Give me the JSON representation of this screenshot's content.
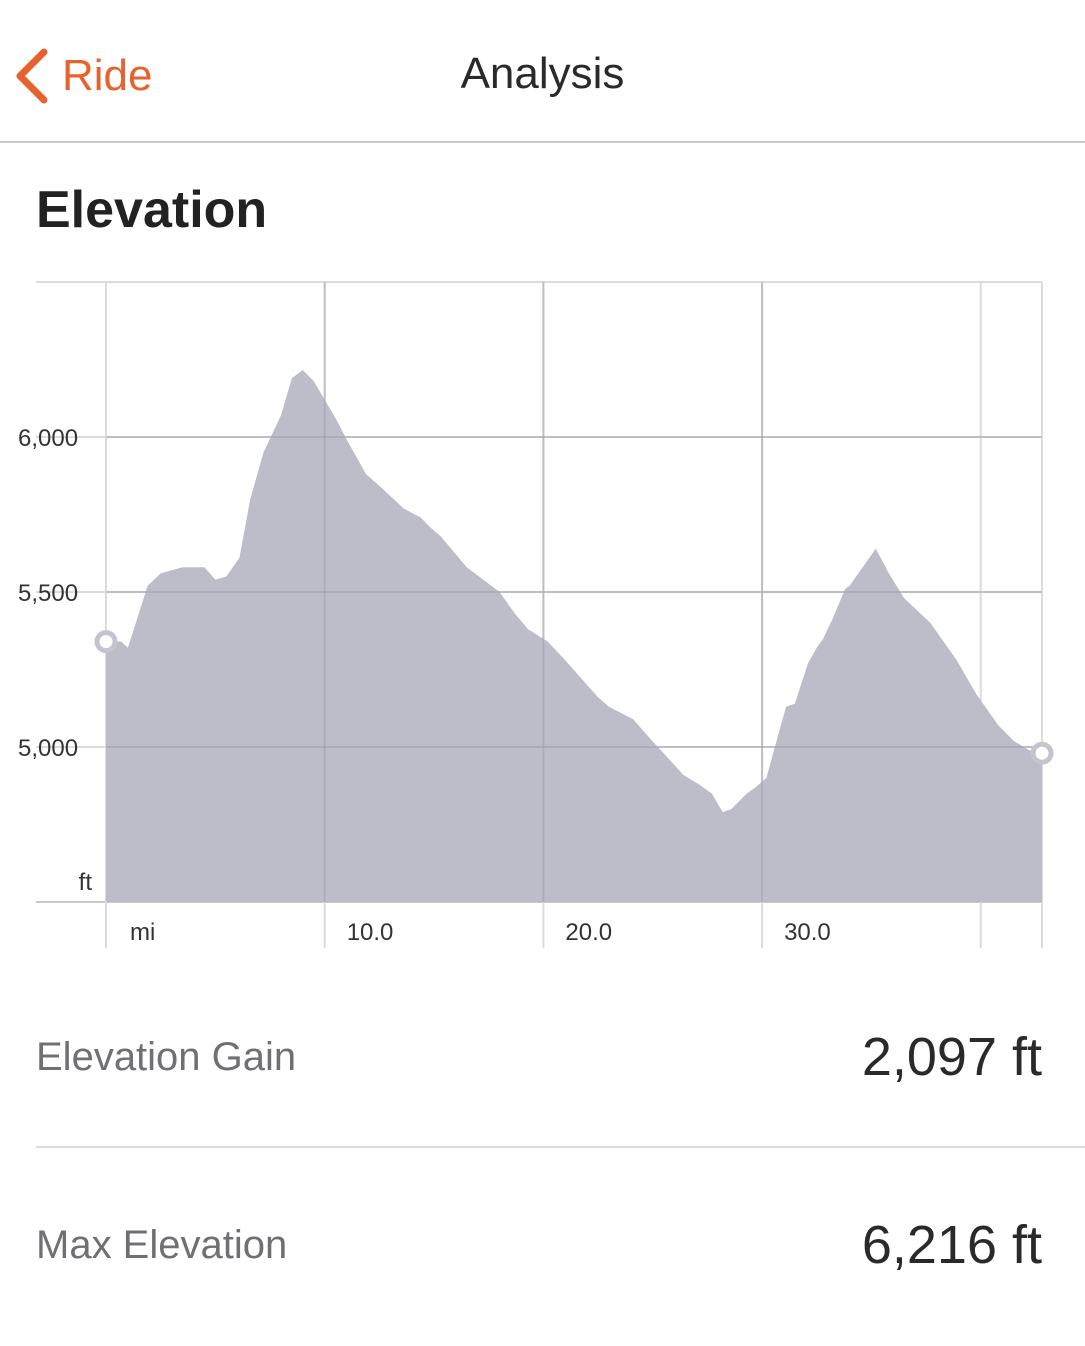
{
  "navbar": {
    "back_label": "Ride",
    "title": "Analysis",
    "accent_color": "#e8622f",
    "back_icon": "chevron-left-icon"
  },
  "section": {
    "title": "Elevation"
  },
  "chart_data": {
    "type": "area",
    "xlabel": "mi",
    "ylabel": "ft",
    "xlim": [
      0,
      42.8
    ],
    "ylim": [
      4500,
      6500
    ],
    "x_ticks": [
      10,
      20,
      30
    ],
    "x_tick_labels": [
      "10.0",
      "20.0",
      "30.0"
    ],
    "y_ticks": [
      5000,
      5500,
      6000
    ],
    "y_tick_labels": [
      "5,000",
      "5,500",
      "6,000"
    ],
    "grid": true,
    "fill_color": "#b9b9c7",
    "series": [
      {
        "x": [
          0,
          0.7,
          1.0,
          1.9,
          2.5,
          3.0,
          3.5,
          4.0,
          4.5,
          5.0,
          5.5,
          5.9,
          6.1,
          6.6,
          7.2,
          8.0,
          8.5,
          9.0,
          9.5,
          10.0,
          10.5,
          11.1,
          11.9,
          12.7,
          13.6,
          14.4,
          14.8,
          15.3,
          16.5,
          18.0,
          18.7,
          19.3,
          20.2,
          21.0,
          22.0,
          22.5,
          23.0,
          24.1,
          25.1,
          25.5,
          26.4,
          27.1,
          27.7,
          28.2,
          28.6,
          29.3,
          29.7,
          30.2,
          30.7,
          31.1,
          31.5,
          32.1,
          32.5,
          32.8,
          33.2,
          33.8,
          34.0,
          35.2,
          35.8,
          36.5,
          37.7,
          38.9,
          39.8,
          40.8,
          41.5,
          42.2,
          42.8
        ],
        "y": [
          5340,
          5340,
          5320,
          5520,
          5560,
          5570,
          5580,
          5580,
          5580,
          5540,
          5550,
          5590,
          5610,
          5800,
          5950,
          6070,
          6190,
          6216,
          6180,
          6120,
          6060,
          5980,
          5880,
          5830,
          5770,
          5740,
          5710,
          5680,
          5580,
          5500,
          5430,
          5380,
          5340,
          5280,
          5200,
          5160,
          5130,
          5090,
          5010,
          4980,
          4910,
          4880,
          4850,
          4790,
          4800,
          4850,
          4870,
          4900,
          5030,
          5130,
          5140,
          5270,
          5320,
          5350,
          5410,
          5510,
          5520,
          5640,
          5560,
          5480,
          5400,
          5280,
          5170,
          5070,
          5020,
          4990,
          4980
        ]
      }
    ]
  },
  "stats": [
    {
      "label": "Elevation Gain",
      "value": "2,097 ft"
    },
    {
      "label": "Max Elevation",
      "value": "6,216 ft"
    }
  ]
}
